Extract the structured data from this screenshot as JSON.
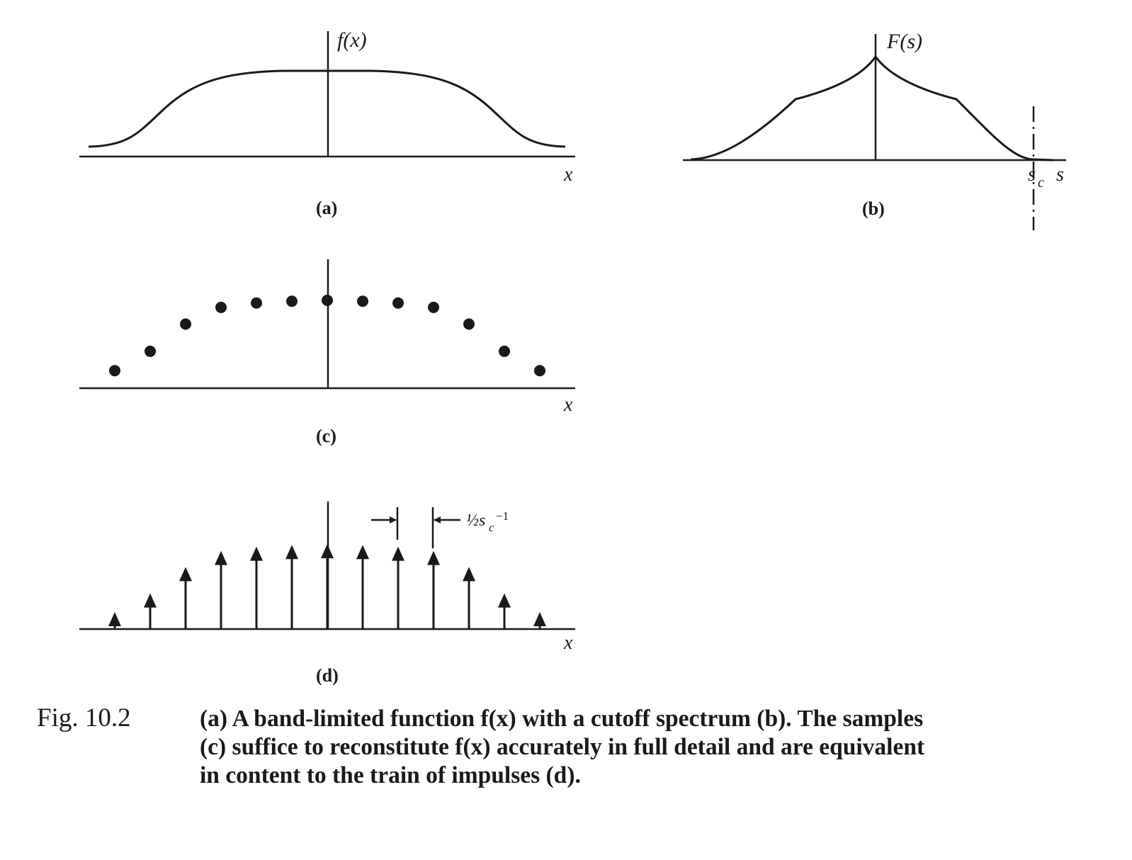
{
  "panels": {
    "a": {
      "label": "(a)",
      "function_label": "f(x)",
      "axis_label": "x"
    },
    "b": {
      "label": "(b)",
      "function_label": "F(s)",
      "cutoff_label": "s",
      "cutoff_subscript": "c",
      "axis_label": "s"
    },
    "c": {
      "label": "(c)",
      "axis_label": "x",
      "sample_values": [
        0.2,
        0.42,
        0.73,
        0.92,
        0.97,
        0.99,
        1.0,
        0.99,
        0.97,
        0.92,
        0.73,
        0.42,
        0.2
      ]
    },
    "d": {
      "label": "(d)",
      "axis_label": "x",
      "spacing_label": "½s",
      "spacing_subscript": "c",
      "spacing_superscript": "−1",
      "impulse_values": [
        0.2,
        0.42,
        0.73,
        0.92,
        0.97,
        0.99,
        1.0,
        0.99,
        0.97,
        0.92,
        0.73,
        0.42,
        0.2
      ]
    }
  },
  "caption": {
    "number": "Fig. 10.2",
    "lines": [
      "(a) A band-limited function f(x) with a cutoff spectrum (b). The samples",
      "(c) suffice to reconstitute f(x) accurately in full detail and are equivalent",
      "in content to the train of impulses (d)."
    ]
  }
}
